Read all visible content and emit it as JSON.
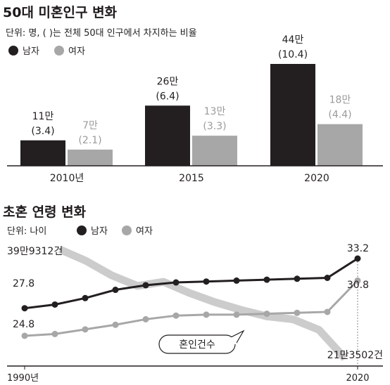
{
  "colors": {
    "male": "#231f20",
    "female": "#a7a7a7",
    "marriage": "#cccccc",
    "axis": "#231f20"
  },
  "chart_data": [
    {
      "type": "bar",
      "title": "50대 미혼인구 변화",
      "subtitle": "단위: 명, ( )는 전체 50대 인구에서 차지하는 비율",
      "legend": [
        "남자",
        "여자"
      ],
      "categories": [
        "2010년",
        "2015",
        "2020"
      ],
      "series": [
        {
          "name": "남자",
          "values": [
            11,
            26,
            44
          ],
          "value_labels": [
            "11만",
            "26만",
            "44만"
          ],
          "shares": [
            "(3.4)",
            "(6.4)",
            "(10.4)"
          ]
        },
        {
          "name": "여자",
          "values": [
            7,
            13,
            18
          ],
          "value_labels": [
            "7만",
            "13만",
            "18만"
          ],
          "shares": [
            "(2.1)",
            "(3.3)",
            "(4.4)"
          ]
        }
      ],
      "ylim": [
        0,
        44
      ],
      "grid": false,
      "legend_position": "top-left"
    },
    {
      "type": "line",
      "title": "초혼 연령 변화",
      "subtitle": "단위: 나이",
      "legend": [
        "남자",
        "여자"
      ],
      "x_start_label": "1990년",
      "x_end_label": "2020",
      "series": [
        {
          "name": "남자",
          "values": [
            27.8,
            28.2,
            28.9,
            29.8,
            30.3,
            30.6,
            30.7,
            30.8,
            30.9,
            31.0,
            31.1,
            33.2
          ],
          "start_label": "27.8",
          "end_label": "33.2"
        },
        {
          "name": "여자",
          "values": [
            24.8,
            25.0,
            25.5,
            26.0,
            26.6,
            27.0,
            27.1,
            27.1,
            27.2,
            27.3,
            27.4,
            30.8
          ],
          "start_label": "24.8",
          "end_label": "30.8"
        },
        {
          "name": "혼인건수",
          "values": [
            399312,
            380000,
            355000,
            337000,
            344000,
            325000,
            309000,
            296000,
            285000,
            280000,
            262000,
            213502
          ],
          "start_label": "39만9312건",
          "end_label": "21만3502건"
        }
      ],
      "grid": false,
      "legend_position": "top-left"
    }
  ]
}
